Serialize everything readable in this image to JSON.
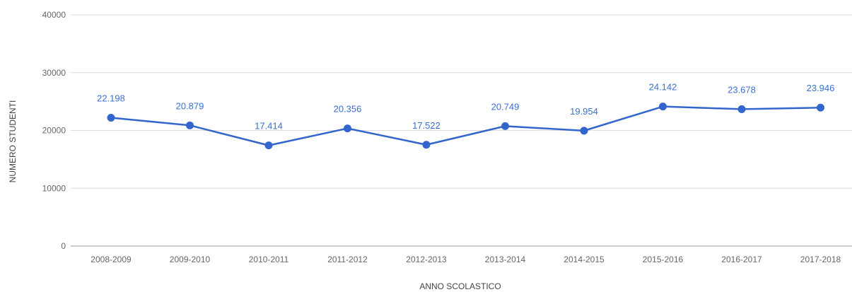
{
  "chart_data": {
    "type": "line",
    "title": "",
    "xlabel": "ANNO SCOLASTICO",
    "ylabel": "NUMERO STUDENTI",
    "categories": [
      "2008-2009",
      "2009-2010",
      "2010-2011",
      "2011-2012",
      "2012-2013",
      "2013-2014",
      "2014-2015",
      "2015-2016",
      "2016-2017",
      "2017-2018"
    ],
    "series": [
      {
        "values": [
          22198,
          20879,
          17414,
          20356,
          17522,
          20749,
          19954,
          24142,
          23678,
          23946
        ],
        "data_labels": [
          "22.198",
          "20.879",
          "17.414",
          "20.356",
          "17.522",
          "20.749",
          "19.954",
          "24.142",
          "23.678",
          "23.946"
        ]
      }
    ],
    "ylim": [
      0,
      40000
    ],
    "yticks": [
      0,
      10000,
      20000,
      30000,
      40000
    ],
    "ytick_labels": [
      "0",
      "10000",
      "20000",
      "30000",
      "40000"
    ],
    "grid": true,
    "legend": "none",
    "colors": {
      "line": "#3366cc",
      "label": "#3b6fd0",
      "grid": "#dddddd",
      "baseline": "#999999"
    }
  }
}
